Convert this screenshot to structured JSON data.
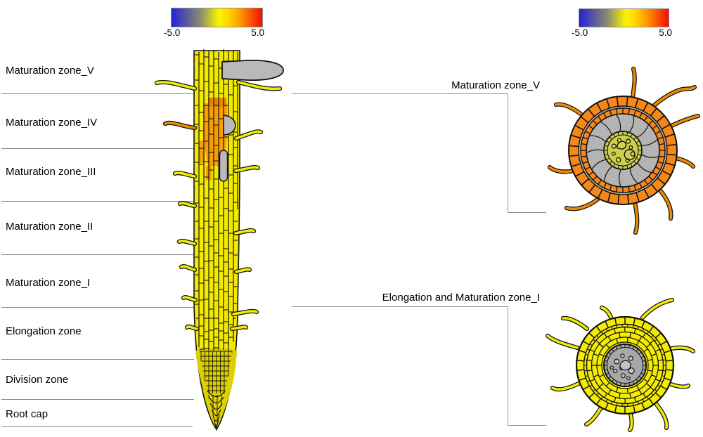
{
  "colorbar_left": {
    "min": "-5.0",
    "max": "5.0"
  },
  "colorbar_right": {
    "min": "-5.0",
    "max": "5.0"
  },
  "gradient_stops": [
    "#2323d4 0%",
    "#8c8c70 32%",
    "#f8f400 52%",
    "#ffd800 62%",
    "#ff9d00 75%",
    "#f20d00 100%"
  ],
  "left_zones": [
    "Maturation zone_V",
    "Maturation zone_IV",
    "Maturation zone_III",
    "Maturation zone_II",
    "Maturation zone_I",
    "Elongation zone",
    "Division zone",
    "Root cap"
  ],
  "cross_sections": {
    "top_label": "Maturation zone_V",
    "bottom_label": "Elongation and Maturation zone_I"
  },
  "figure_colors": {
    "yellow": "#f2e800",
    "yellow_bright": "#f4ec00",
    "orange_cells": "#f99d07",
    "orange_dark": "#e78500",
    "epidermis_orange": "#f5871b",
    "hair_orange": "#f08a00",
    "gray_organ": "#b9b9b9",
    "cortex_gray": "#b4b4b4",
    "stele_olive": "#cdd04a",
    "stele_gray": "#a8a8a8",
    "stele_circle_fill": "#c2c2c2",
    "division_olive": "#ddd000",
    "outline": "#111111"
  }
}
